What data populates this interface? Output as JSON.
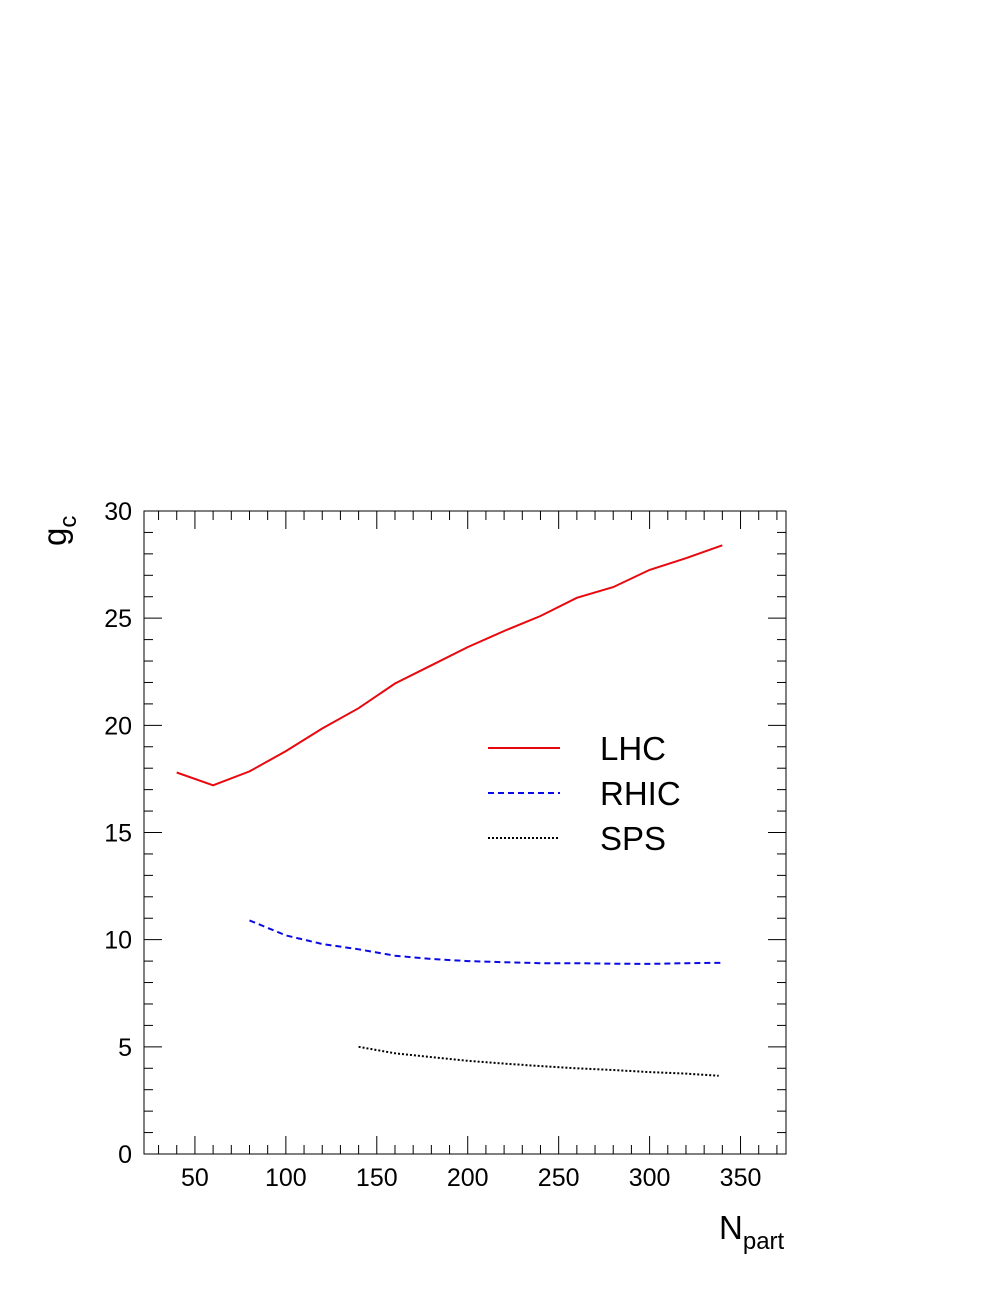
{
  "chart_data": {
    "type": "line",
    "xlabel": "N",
    "xlabel_sub": "part",
    "ylabel": "g",
    "ylabel_sub": "c",
    "xlim": [
      22,
      375
    ],
    "ylim": [
      0,
      30
    ],
    "x_ticks": [
      50,
      100,
      150,
      200,
      250,
      300,
      350
    ],
    "y_ticks": [
      0,
      5,
      10,
      15,
      20,
      25,
      30
    ],
    "grid": false,
    "legend_position": "center-right",
    "series": [
      {
        "name": "LHC",
        "color": "#e8090f",
        "dash": "solid",
        "x": [
          40,
          60,
          80,
          100,
          120,
          140,
          160,
          180,
          200,
          220,
          240,
          260,
          280,
          300,
          320,
          340
        ],
        "y": [
          17.8,
          17.2,
          17.85,
          18.8,
          19.85,
          20.8,
          21.95,
          22.8,
          23.65,
          24.4,
          25.1,
          25.95,
          26.45,
          27.25,
          27.8,
          28.4
        ]
      },
      {
        "name": "RHIC",
        "color": "#0a0ae6",
        "dash": "dashed",
        "x": [
          80,
          100,
          120,
          140,
          160,
          180,
          200,
          220,
          240,
          260,
          280,
          300,
          320,
          340
        ],
        "y": [
          10.9,
          10.2,
          9.8,
          9.55,
          9.25,
          9.1,
          9.0,
          8.95,
          8.9,
          8.9,
          8.88,
          8.87,
          8.9,
          8.92
        ]
      },
      {
        "name": "SPS",
        "color": "#000000",
        "dash": "dotted",
        "x": [
          140,
          160,
          180,
          200,
          220,
          240,
          260,
          280,
          300,
          320,
          338
        ],
        "y": [
          5.0,
          4.7,
          4.52,
          4.35,
          4.22,
          4.1,
          4.0,
          3.92,
          3.82,
          3.75,
          3.65
        ]
      }
    ]
  }
}
